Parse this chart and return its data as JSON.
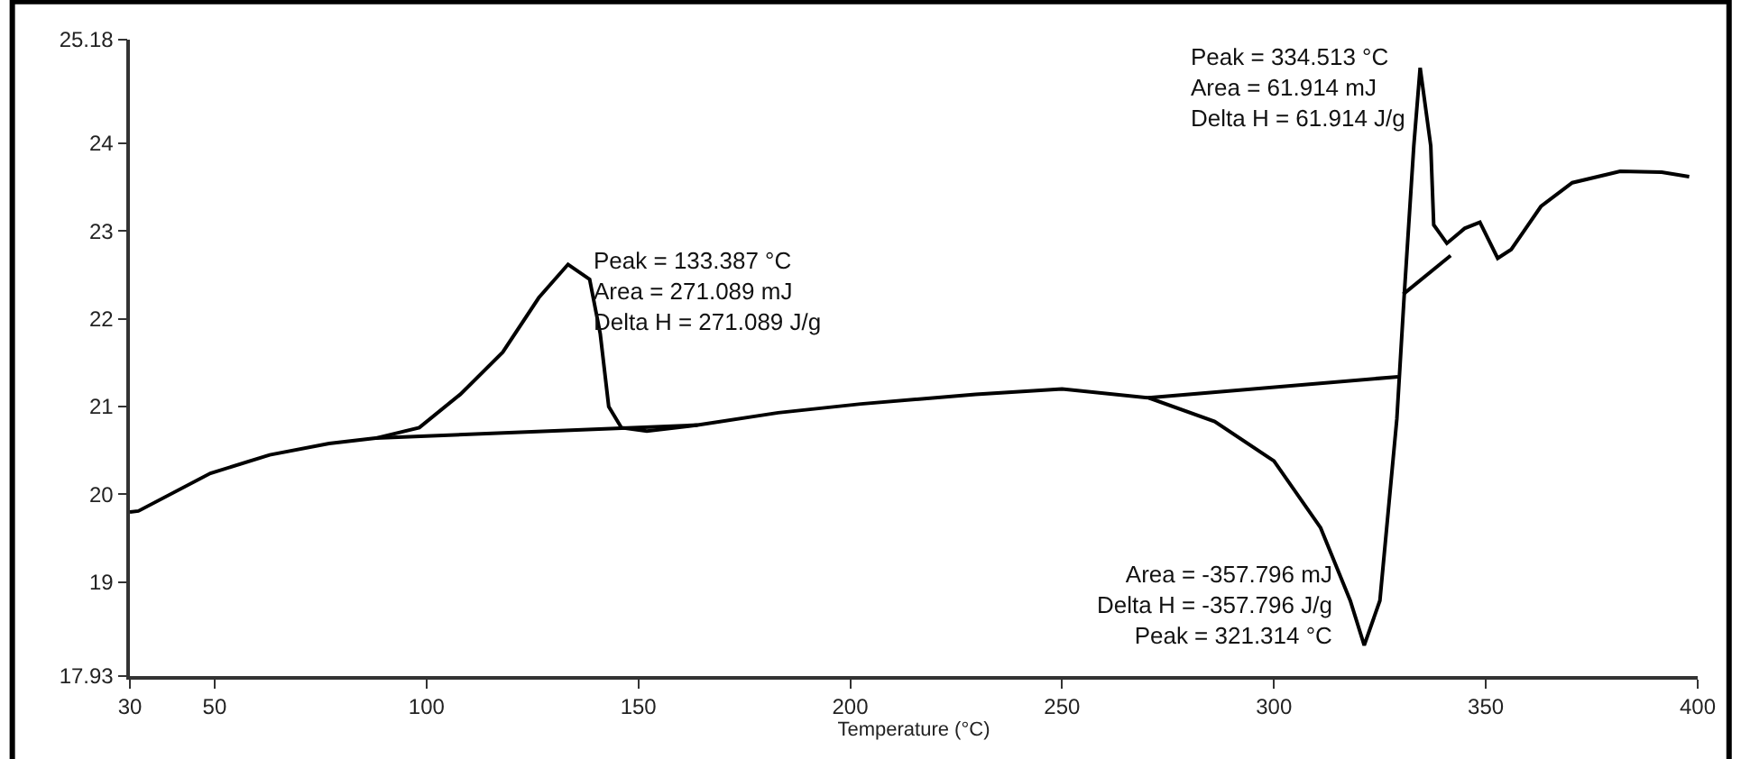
{
  "chart_data": {
    "type": "line",
    "xlabel": "Temperature (°C)",
    "xlim": [
      30,
      400
    ],
    "xticks": [
      30,
      50,
      100,
      150,
      200,
      250,
      300,
      350,
      400
    ],
    "ylim": [
      17.93,
      25.18
    ],
    "yticks": [
      17.93,
      19,
      20,
      21,
      22,
      23,
      24,
      25.18
    ],
    "marker": "none",
    "line_style": "solid",
    "series": [
      {
        "color": "#000000",
        "x": [
          30,
          32,
          49,
          63,
          77,
          88,
          98.3,
          108,
          118,
          126.5,
          133.4,
          138.5,
          141,
          143,
          146,
          152,
          164,
          183,
          202.5,
          229.6,
          250,
          270.4,
          286,
          300,
          311,
          318,
          321.3,
          325,
          329,
          330.7,
          333,
          334.5,
          337,
          337.7,
          340.8,
          345,
          348.6,
          352.8,
          356,
          363,
          370.4,
          381.7,
          391.5,
          398
        ],
        "values": [
          19.8,
          19.81,
          20.24,
          20.45,
          20.58,
          20.64,
          20.76,
          21.14,
          21.62,
          22.24,
          22.62,
          22.45,
          21.83,
          21.0,
          20.76,
          20.72,
          20.79,
          20.93,
          21.03,
          21.14,
          21.2,
          21.1,
          20.83,
          20.38,
          19.62,
          18.79,
          18.28,
          18.79,
          20.86,
          22.24,
          23.97,
          24.86,
          23.97,
          23.07,
          22.86,
          23.03,
          23.1,
          22.69,
          22.79,
          23.28,
          23.55,
          23.68,
          23.67,
          23.62
        ]
      },
      {
        "color": "#000000",
        "x": [
          88,
          164
        ],
        "values": [
          20.64,
          20.79
        ]
      },
      {
        "color": "#000000",
        "x": [
          270.4,
          329.3
        ],
        "values": [
          21.1,
          21.34
        ]
      },
      {
        "color": "#000000",
        "x": [
          330.5,
          341.7
        ],
        "values": [
          22.28,
          22.72
        ]
      }
    ],
    "annotations": [
      {
        "text": "Peak = 133.387 °C\nArea = 271.089 mJ\nDelta H = 271.089 J/g",
        "x": 133.4,
        "y": 22.62
      },
      {
        "text": "Peak = 334.513 °C\nArea = 61.914 mJ\nDelta H = 61.914 J/g",
        "x": 334.5,
        "y": 24.86
      },
      {
        "text": "Area = -357.796 mJ\nDelta H = -357.796 J/g\nPeak = 321.314 °C",
        "x": 321.3,
        "y": 18.28
      }
    ]
  }
}
